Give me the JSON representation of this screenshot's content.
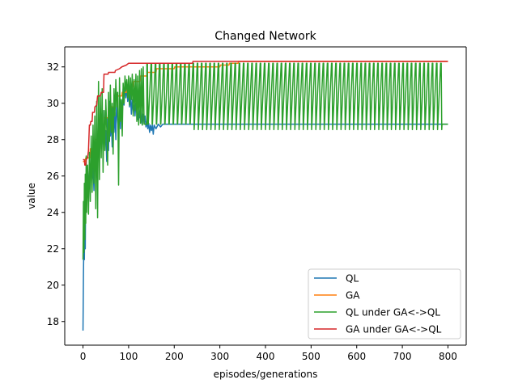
{
  "chart_data": {
    "type": "line",
    "title": "Changed Network",
    "xlabel": "episodes/generations",
    "ylabel": "value",
    "xlim": [
      -40,
      840
    ],
    "ylim": [
      16.7,
      33.1
    ],
    "xticks": [
      0,
      100,
      200,
      300,
      400,
      500,
      600,
      700,
      800
    ],
    "yticks": [
      18,
      20,
      22,
      24,
      26,
      28,
      30,
      32
    ],
    "legend_position": "lower right",
    "grid": false,
    "series": [
      {
        "name": "QL",
        "color": "#1f77b4",
        "points": [
          [
            0,
            17.5
          ],
          [
            1,
            20.6
          ],
          [
            2,
            22.5
          ],
          [
            3,
            21.4
          ],
          [
            4,
            24.8
          ],
          [
            5,
            22.0
          ],
          [
            6,
            26.0
          ],
          [
            8,
            24.7
          ],
          [
            10,
            26.3
          ],
          [
            12,
            25.0
          ],
          [
            14,
            26.6
          ],
          [
            16,
            25.3
          ],
          [
            18,
            27.0
          ],
          [
            20,
            25.8
          ],
          [
            22,
            26.5
          ],
          [
            24,
            25.2
          ],
          [
            26,
            27.3
          ],
          [
            28,
            26.1
          ],
          [
            30,
            28.0
          ],
          [
            32,
            26.4
          ],
          [
            34,
            28.7
          ],
          [
            36,
            27.1
          ],
          [
            38,
            29.4
          ],
          [
            40,
            27.5
          ],
          [
            42,
            28.9
          ],
          [
            44,
            27.2
          ],
          [
            46,
            29.6
          ],
          [
            48,
            27.8
          ],
          [
            50,
            28.5
          ],
          [
            52,
            26.8
          ],
          [
            54,
            29.2
          ],
          [
            56,
            27.4
          ],
          [
            58,
            30.1
          ],
          [
            60,
            28.2
          ],
          [
            62,
            29.0
          ],
          [
            64,
            27.6
          ],
          [
            66,
            29.8
          ],
          [
            68,
            28.4
          ],
          [
            70,
            29.5
          ],
          [
            72,
            28.0
          ],
          [
            74,
            30.4
          ],
          [
            76,
            29.1
          ],
          [
            78,
            28.3
          ],
          [
            80,
            29.7
          ],
          [
            82,
            28.6
          ],
          [
            84,
            30.2
          ],
          [
            86,
            29.2
          ],
          [
            88,
            30.8
          ],
          [
            90,
            29.9
          ],
          [
            92,
            31.1
          ],
          [
            94,
            30.3
          ],
          [
            96,
            30.9
          ],
          [
            98,
            30.1
          ],
          [
            100,
            30.6
          ],
          [
            102,
            29.8
          ],
          [
            104,
            30.5
          ],
          [
            106,
            29.4
          ],
          [
            108,
            30.2
          ],
          [
            110,
            29.6
          ],
          [
            112,
            29.9
          ],
          [
            114,
            29.3
          ],
          [
            116,
            30.0
          ],
          [
            118,
            29.5
          ],
          [
            120,
            29.1
          ],
          [
            122,
            29.7
          ],
          [
            124,
            29.2
          ],
          [
            126,
            29.8
          ],
          [
            128,
            29.0
          ],
          [
            130,
            28.8
          ],
          [
            132,
            29.4
          ],
          [
            134,
            28.9
          ],
          [
            136,
            29.3
          ],
          [
            138,
            28.7
          ],
          [
            140,
            29.0
          ],
          [
            142,
            28.6
          ],
          [
            144,
            28.9
          ],
          [
            146,
            28.4
          ],
          [
            148,
            28.8
          ],
          [
            150,
            28.5
          ],
          [
            152,
            28.8
          ],
          [
            154,
            28.3
          ],
          [
            156,
            28.8
          ],
          [
            160,
            28.6
          ],
          [
            165,
            28.85
          ],
          [
            170,
            28.7
          ],
          [
            175,
            28.85
          ],
          [
            180,
            28.85
          ],
          [
            800,
            28.85
          ]
        ]
      },
      {
        "name": "GA",
        "color": "#ff7f0e",
        "points": [
          [
            0,
            26.8
          ],
          [
            5,
            26.8
          ],
          [
            6,
            27.0
          ],
          [
            15,
            27.0
          ],
          [
            16,
            27.5
          ],
          [
            25,
            27.5
          ],
          [
            26,
            28.0
          ],
          [
            35,
            28.0
          ],
          [
            36,
            28.6
          ],
          [
            45,
            28.6
          ],
          [
            46,
            29.2
          ],
          [
            55,
            29.2
          ],
          [
            56,
            29.8
          ],
          [
            70,
            29.8
          ],
          [
            71,
            30.4
          ],
          [
            85,
            30.4
          ],
          [
            86,
            30.6
          ],
          [
            95,
            30.6
          ],
          [
            96,
            30.9
          ],
          [
            110,
            30.9
          ],
          [
            111,
            31.2
          ],
          [
            125,
            31.2
          ],
          [
            126,
            31.5
          ],
          [
            140,
            31.5
          ],
          [
            141,
            31.7
          ],
          [
            160,
            31.7
          ],
          [
            161,
            31.9
          ],
          [
            200,
            31.9
          ],
          [
            201,
            32.0
          ],
          [
            300,
            32.0
          ],
          [
            301,
            32.1
          ],
          [
            320,
            32.1
          ],
          [
            321,
            32.2
          ],
          [
            340,
            32.2
          ],
          [
            341,
            32.3
          ],
          [
            800,
            32.3
          ]
        ]
      },
      {
        "name": "QL under GA<->QL",
        "color": "#2ca02c",
        "pattern": {
          "initial_points": [
            [
              0,
              21.4
            ],
            [
              1,
              24.6
            ],
            [
              2,
              21.8
            ],
            [
              3,
              25.6
            ],
            [
              4,
              22.5
            ],
            [
              5,
              26.1
            ],
            [
              6,
              23.4
            ],
            [
              7,
              27.1
            ],
            [
              8,
              24.0
            ],
            [
              10,
              26.6
            ],
            [
              12,
              23.9
            ],
            [
              14,
              27.3
            ],
            [
              16,
              24.6
            ],
            [
              18,
              28.2
            ],
            [
              20,
              25.1
            ],
            [
              22,
              28.8
            ],
            [
              24,
              25.6
            ],
            [
              26,
              29.3
            ],
            [
              28,
              24.2
            ],
            [
              30,
              30.1
            ],
            [
              32,
              23.7
            ],
            [
              34,
              31.2
            ],
            [
              36,
              25.8
            ],
            [
              38,
              30.4
            ],
            [
              40,
              27.0
            ],
            [
              42,
              30.8
            ],
            [
              44,
              26.2
            ],
            [
              46,
              29.6
            ],
            [
              48,
              27.4
            ],
            [
              50,
              30.2
            ],
            [
              52,
              28.6
            ],
            [
              54,
              26.6
            ],
            [
              56,
              30.6
            ],
            [
              58,
              27.9
            ],
            [
              60,
              31.0
            ],
            [
              62,
              28.4
            ],
            [
              64,
              30.0
            ],
            [
              66,
              27.2
            ],
            [
              68,
              30.8
            ],
            [
              70,
              29.3
            ],
            [
              72,
              31.3
            ],
            [
              74,
              29.8
            ],
            [
              76,
              30.6
            ],
            [
              78,
              25.5
            ],
            [
              80,
              31.4
            ],
            [
              82,
              29.0
            ],
            [
              84,
              30.2
            ],
            [
              86,
              28.2
            ],
            [
              88,
              31.1
            ],
            [
              90,
              30.0
            ],
            [
              92,
              31.5
            ],
            [
              94,
              30.7
            ],
            [
              96,
              31.3
            ],
            [
              98,
              30.3
            ],
            [
              100,
              31.5
            ],
            [
              102,
              29.9
            ],
            [
              104,
              31.4
            ],
            [
              106,
              30.2
            ],
            [
              108,
              31.6
            ],
            [
              110,
              29.3
            ],
            [
              112,
              31.3
            ],
            [
              114,
              29.6
            ],
            [
              116,
              31.6
            ],
            [
              118,
              29.0
            ],
            [
              120,
              31.5
            ],
            [
              122,
              28.8
            ],
            [
              124,
              31.8
            ],
            [
              126,
              28.9
            ],
            [
              128,
              31.9
            ],
            [
              130,
              28.8
            ],
            [
              132,
              32.0
            ],
            [
              134,
              28.85
            ]
          ],
          "spike_start": 140,
          "spike_end": 790,
          "spike_interval": 9.2,
          "baseline": 28.85,
          "peak": 32.2,
          "trough": 28.55,
          "deep_trough_after_x": 240,
          "end_x": 800
        }
      },
      {
        "name": "GA under GA<->QL",
        "color": "#d62728",
        "points": [
          [
            0,
            26.9
          ],
          [
            3,
            26.9
          ],
          [
            4,
            26.6
          ],
          [
            6,
            26.6
          ],
          [
            7,
            26.9
          ],
          [
            10,
            27.0
          ],
          [
            12,
            27.4
          ],
          [
            14,
            28.8
          ],
          [
            16,
            28.8
          ],
          [
            17,
            29.0
          ],
          [
            20,
            29.0
          ],
          [
            21,
            29.5
          ],
          [
            25,
            29.5
          ],
          [
            26,
            29.8
          ],
          [
            30,
            29.9
          ],
          [
            32,
            30.4
          ],
          [
            38,
            30.4
          ],
          [
            40,
            30.6
          ],
          [
            45,
            30.6
          ],
          [
            46,
            31.6
          ],
          [
            55,
            31.6
          ],
          [
            56,
            31.7
          ],
          [
            70,
            31.7
          ],
          [
            71,
            31.8
          ],
          [
            80,
            31.9
          ],
          [
            85,
            32.0
          ],
          [
            95,
            32.1
          ],
          [
            100,
            32.2
          ],
          [
            240,
            32.2
          ],
          [
            241,
            32.3
          ],
          [
            800,
            32.3
          ]
        ]
      }
    ]
  }
}
